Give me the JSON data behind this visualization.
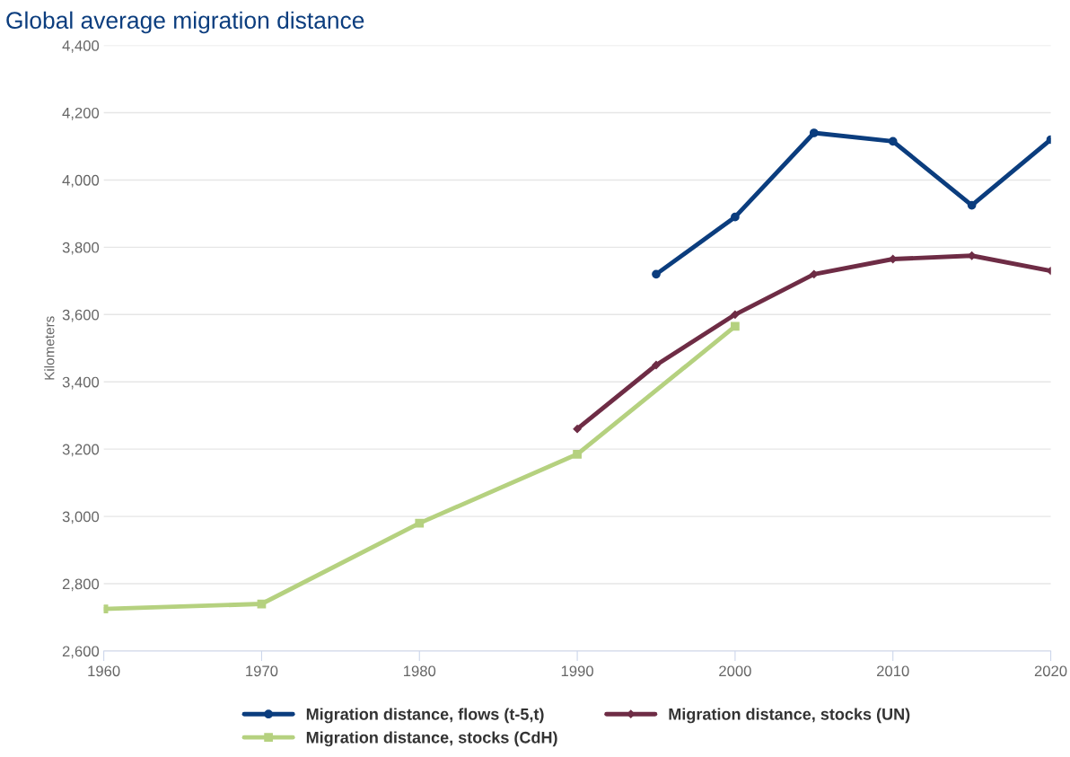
{
  "chart_data": {
    "type": "line",
    "title": "Global average migration distance",
    "ylabel": "Kilometers",
    "xlim": [
      1960,
      2020
    ],
    "xticks": [
      1960,
      1970,
      1980,
      1990,
      2000,
      2010,
      2020
    ],
    "ylim": [
      2600,
      4400
    ],
    "yticks": [
      {
        "value": 2600,
        "label": "2,600"
      },
      {
        "value": 2800,
        "label": "2,800"
      },
      {
        "value": 3000,
        "label": "3,000"
      },
      {
        "value": 3200,
        "label": "3,200"
      },
      {
        "value": 3400,
        "label": "3,400"
      },
      {
        "value": 3600,
        "label": "3,600"
      },
      {
        "value": 3800,
        "label": "3,800"
      },
      {
        "value": 4000,
        "label": "4,000"
      },
      {
        "value": 4200,
        "label": "4,200"
      },
      {
        "value": 4400,
        "label": "4,400"
      }
    ],
    "grid": "y",
    "legend": "bottom",
    "series": [
      {
        "name": "Migration distance, flows (t-5,t)",
        "color": "#0b3d7e",
        "marker": "circle",
        "x": [
          1995,
          2000,
          2005,
          2010,
          2015,
          2020
        ],
        "values": [
          3720,
          3890,
          4140,
          4115,
          3925,
          4120
        ]
      },
      {
        "name": "Migration distance, stocks (UN)",
        "color": "#6e2c45",
        "marker": "diamond",
        "x": [
          1990,
          1995,
          2000,
          2005,
          2010,
          2015,
          2020
        ],
        "values": [
          3260,
          3450,
          3600,
          3720,
          3765,
          3775,
          3730
        ]
      },
      {
        "name": "Migration distance, stocks (CdH)",
        "color": "#b5d17f",
        "marker": "square",
        "x": [
          1960,
          1970,
          1980,
          1990,
          2000
        ],
        "values": [
          2725,
          2740,
          2980,
          3185,
          3565
        ]
      }
    ]
  }
}
